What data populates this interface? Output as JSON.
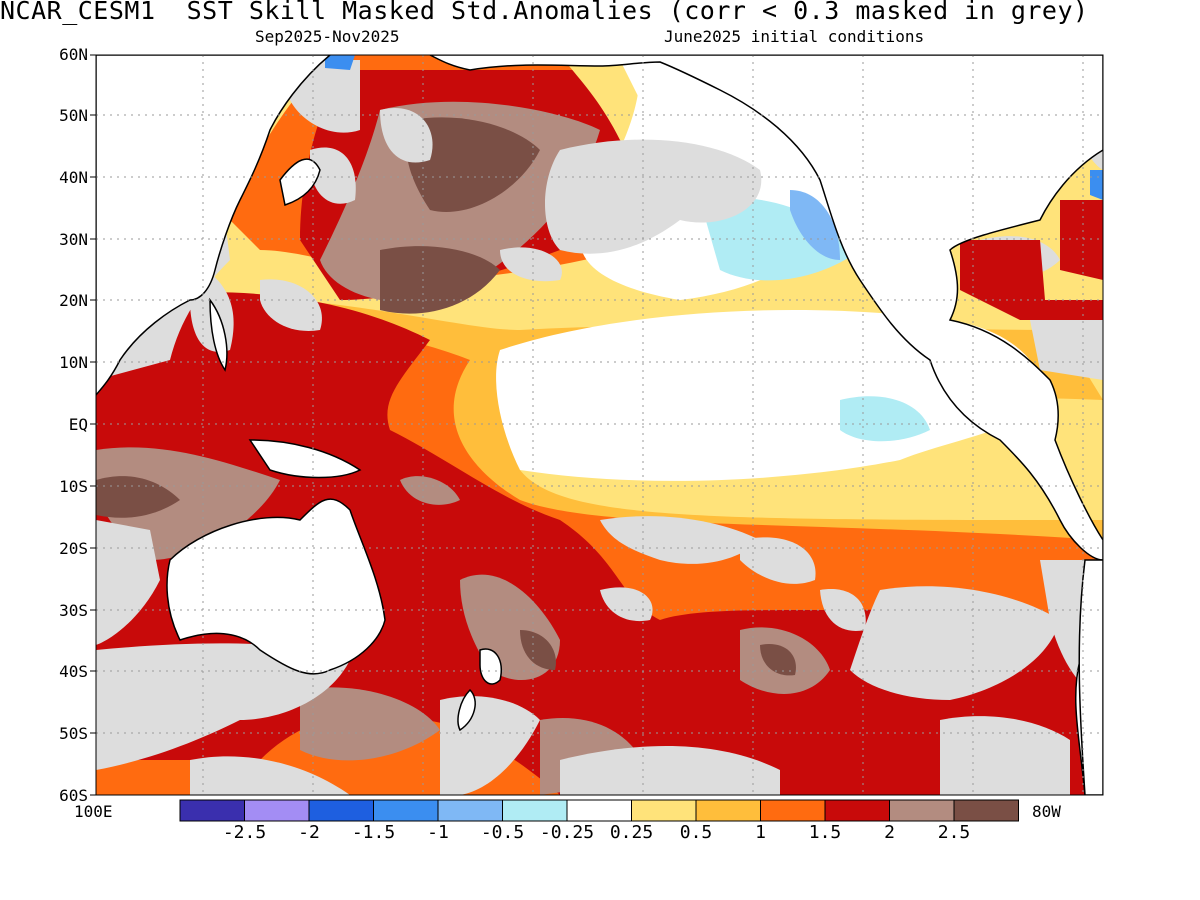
{
  "title": "NCAR_CESM1  SST Skill Masked Std.Anomalies (corr < 0.3 masked in grey)",
  "subtitle_left": "Sep2025-Nov2025",
  "subtitle_right": "June2025 initial conditions",
  "lat_labels": [
    "60N",
    "50N",
    "40N",
    "30N",
    "20N",
    "10N",
    "EQ",
    "10S",
    "20S",
    "30S",
    "40S",
    "50S",
    "60S"
  ],
  "lon_labels": {
    "left": "100E",
    "right": "80W"
  },
  "colorbar": {
    "colors": [
      "#3a2fae",
      "#a38df4",
      "#1e5fe0",
      "#3b8ef0",
      "#7fb8f5",
      "#b0ecf4",
      "#ffffff",
      "#ffe37a",
      "#ffbe3b",
      "#ff6b10",
      "#c80a0a",
      "#b38c80",
      "#7a4f45"
    ],
    "tick_labels": [
      "-2.5",
      "-2",
      "-1.5",
      "-1",
      "-0.5",
      "-0.25",
      "0.25",
      "0.5",
      "1",
      "1.5",
      "2",
      "2.5"
    ]
  },
  "colors": {
    "mask_grey": "#dddddd",
    "land": "#ffffff",
    "coast": "#000000"
  }
}
